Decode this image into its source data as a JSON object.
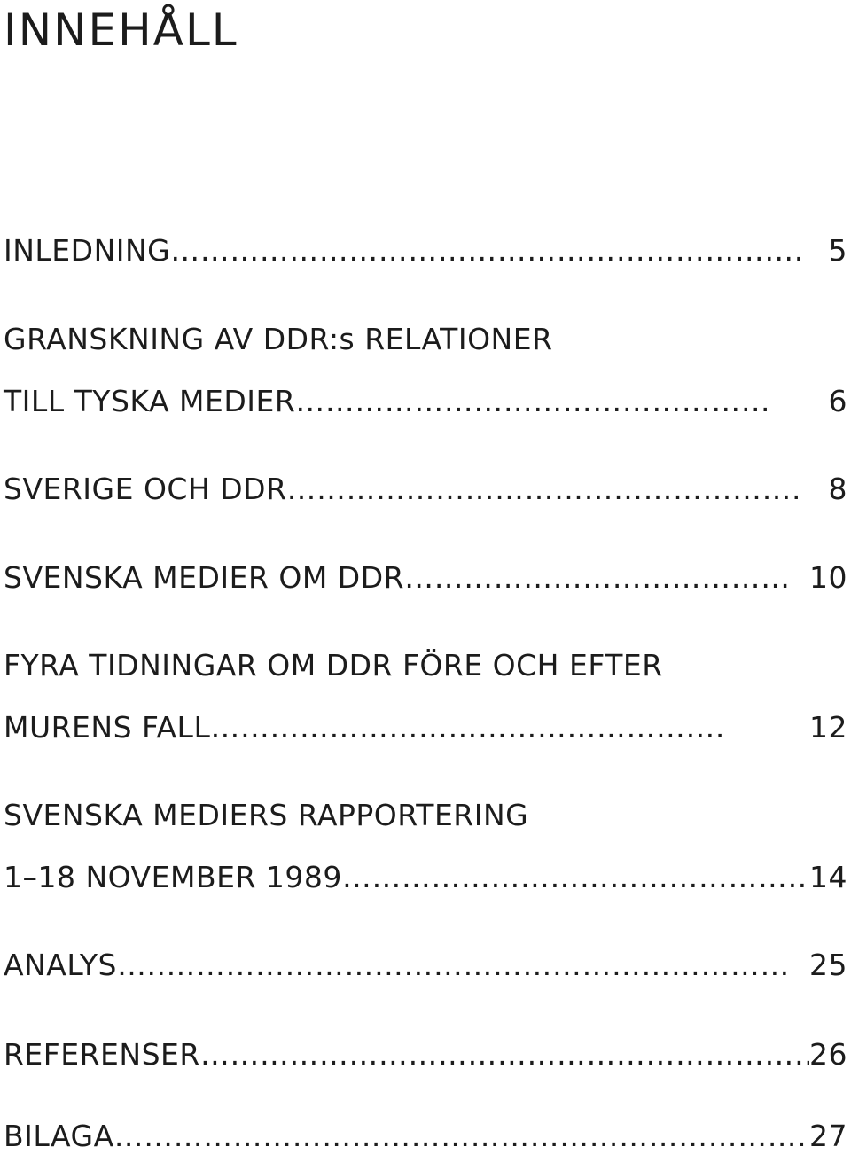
{
  "title": "INNEHÅLL",
  "entries": [
    {
      "lines": [
        "INLEDNING"
      ],
      "leader": "……………………………………………………….",
      "page": "5"
    },
    {
      "lines": [
        "GRANSKNING AV DDR:s RELATIONER",
        "TILL TYSKA MEDIER"
      ],
      "leader": "…………………………………………",
      "page": "6"
    },
    {
      "lines": [
        "SVERIGE OCH DDR"
      ],
      "leader": "…………………………………………….",
      "page": "8"
    },
    {
      "lines": [
        "SVENSKA MEDIER OM DDR"
      ],
      "leader": "…………………………………",
      "page": "10"
    },
    {
      "lines": [
        "FYRA TIDNINGAR OM DDR FÖRE OCH EFTER",
        "MURENS FALL"
      ],
      "leader": "…………………………………………….",
      "page": "12"
    },
    {
      "lines": [
        "SVENSKA MEDIERS RAPPORTERING",
        "1–18 NOVEMBER 1989"
      ],
      "leader": "………………………………………….",
      "page": "14"
    },
    {
      "lines": [
        "ANALYS"
      ],
      "leader": "…..………………………………………………………",
      "page": "25"
    },
    {
      "lines": [
        "REFERENSER"
      ],
      "leader": "……………………………………………………………",
      "page": "26"
    },
    {
      "lines": [
        "BILAGA"
      ],
      "leader": "…………………………………………………………….",
      "page": "27"
    }
  ]
}
